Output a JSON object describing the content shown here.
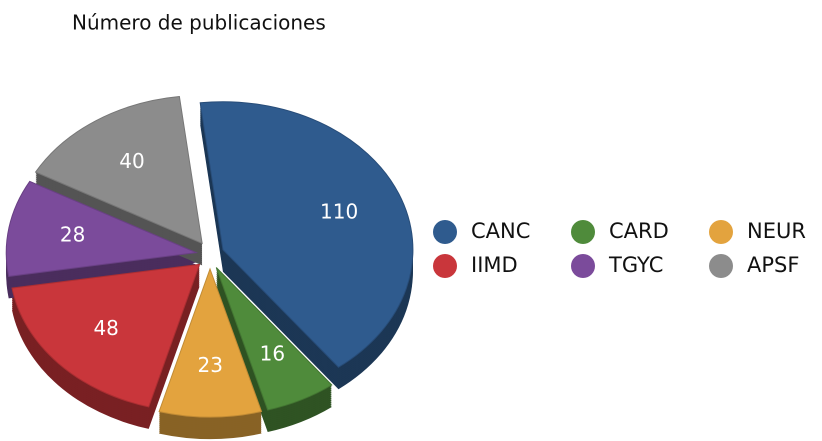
{
  "chart_data": {
    "type": "pie",
    "title": "Número de publicaciones",
    "categories": [
      "CANC",
      "CARD",
      "NEUR",
      "IIMD",
      "TGYC",
      "APSF"
    ],
    "values": [
      110,
      16,
      23,
      48,
      28,
      40
    ],
    "colors": [
      "#2f5b8e",
      "#4f8b3b",
      "#e3a33e",
      "#c9363b",
      "#7b4b9b",
      "#8c8c8c"
    ],
    "legend": "right"
  }
}
